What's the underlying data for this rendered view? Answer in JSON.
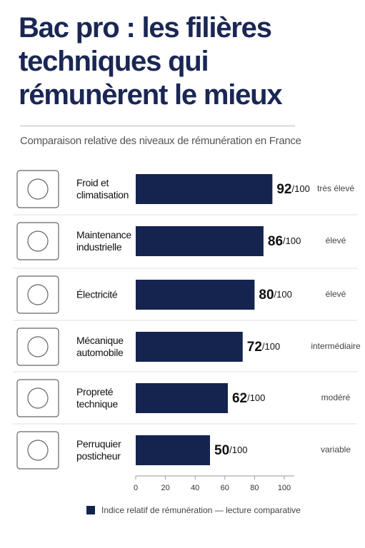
{
  "chart_data": {
    "type": "bar",
    "orientation": "horizontal",
    "title": "Bac pro : les filières techniques qui rémunèrent le mieux",
    "subtitle": "Comparaison relative des niveaux de rémunération en France",
    "categories": [
      "Froid et climatisation",
      "Maintenance industrielle",
      "Électricité",
      "Mécanique automobile",
      "Propreté technique",
      "Perruquier posticheur"
    ],
    "values": [
      92,
      86,
      80,
      72,
      62,
      50
    ],
    "value_suffix": "/100",
    "levels": [
      "très élevé",
      "élevé",
      "élevé",
      "intermédiaire",
      "modéré",
      "variable"
    ],
    "color": "#14244f",
    "xlim": [
      0,
      100
    ],
    "xticks": [
      0,
      20,
      40,
      60,
      80,
      100
    ],
    "legend": "Indice relatif de rémunération — lecture comparative"
  }
}
